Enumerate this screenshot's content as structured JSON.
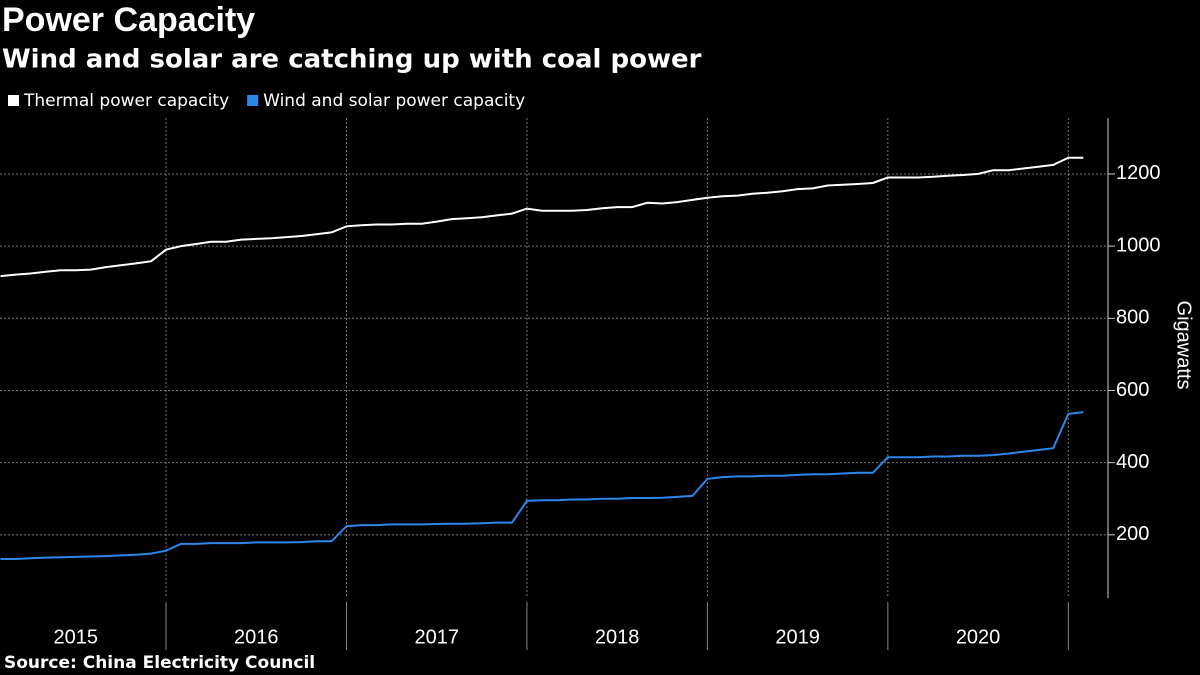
{
  "chart_data": {
    "type": "line",
    "title": "Power Capacity",
    "subtitle": "Wind and solar are catching up with coal power",
    "source": "Source: China Electricity Council",
    "ylabel": "Gigawatts",
    "x": [
      2015.083,
      2015.167,
      2015.25,
      2015.333,
      2015.417,
      2015.5,
      2015.583,
      2015.667,
      2015.75,
      2015.833,
      2015.917,
      2016,
      2016.083,
      2016.167,
      2016.25,
      2016.333,
      2016.417,
      2016.5,
      2016.583,
      2016.667,
      2016.75,
      2016.833,
      2016.917,
      2017,
      2017.083,
      2017.167,
      2017.25,
      2017.333,
      2017.417,
      2017.5,
      2017.583,
      2017.667,
      2017.75,
      2017.833,
      2017.917,
      2018,
      2018.083,
      2018.167,
      2018.25,
      2018.333,
      2018.417,
      2018.5,
      2018.583,
      2018.667,
      2018.75,
      2018.833,
      2018.917,
      2019,
      2019.083,
      2019.167,
      2019.25,
      2019.333,
      2019.417,
      2019.5,
      2019.583,
      2019.667,
      2019.75,
      2019.833,
      2019.917,
      2020,
      2020.083,
      2020.167,
      2020.25,
      2020.333,
      2020.417,
      2020.5,
      2020.583,
      2020.667,
      2020.75,
      2020.833,
      2020.917,
      2021,
      2021.083
    ],
    "series": [
      {
        "name": "Thermal power capacity",
        "color": "#ffffff",
        "values": [
          917,
          921,
          924,
          929,
          933,
          933,
          935,
          942,
          947,
          952,
          958,
          990,
          1000,
          1006,
          1012,
          1012,
          1018,
          1020,
          1022,
          1025,
          1028,
          1033,
          1038,
          1055,
          1058,
          1060,
          1060,
          1062,
          1062,
          1068,
          1075,
          1077,
          1080,
          1085,
          1090,
          1104,
          1098,
          1098,
          1098,
          1100,
          1105,
          1108,
          1108,
          1120,
          1118,
          1122,
          1128,
          1134,
          1138,
          1140,
          1145,
          1148,
          1152,
          1158,
          1160,
          1168,
          1170,
          1172,
          1175,
          1190,
          1190,
          1190,
          1192,
          1195,
          1197,
          1200,
          1210,
          1210,
          1215,
          1220,
          1225,
          1245,
          1245
        ]
      },
      {
        "name": "Wind and solar power capacity",
        "color": "#2b87ea",
        "values": [
          133,
          133,
          135,
          137,
          138,
          139,
          140,
          141,
          143,
          145,
          148,
          156,
          175,
          175,
          177,
          177,
          177,
          179,
          179,
          179,
          180,
          182,
          182,
          224,
          227,
          227,
          229,
          229,
          229,
          230,
          231,
          231,
          232,
          234,
          234,
          294,
          296,
          296,
          298,
          298,
          300,
          300,
          302,
          302,
          303,
          305,
          308,
          355,
          360,
          362,
          362,
          364,
          364,
          366,
          368,
          368,
          370,
          372,
          372,
          415,
          415,
          415,
          417,
          417,
          419,
          419,
          421,
          425,
          430,
          435,
          440,
          535,
          540
        ]
      }
    ],
    "xlim": [
      2015.08,
      2021.22
    ],
    "xticks": [
      {
        "value": 2015.5,
        "label": "2015"
      },
      {
        "value": 2016.5,
        "label": "2016"
      },
      {
        "value": 2017.5,
        "label": "2017"
      },
      {
        "value": 2018.5,
        "label": "2018"
      },
      {
        "value": 2019.5,
        "label": "2019"
      },
      {
        "value": 2020.5,
        "label": "2020"
      }
    ],
    "ylim": [
      25,
      1355
    ],
    "yticks": [
      200,
      400,
      600,
      800,
      1000,
      1200
    ],
    "grid": true,
    "legend": "top-left"
  }
}
